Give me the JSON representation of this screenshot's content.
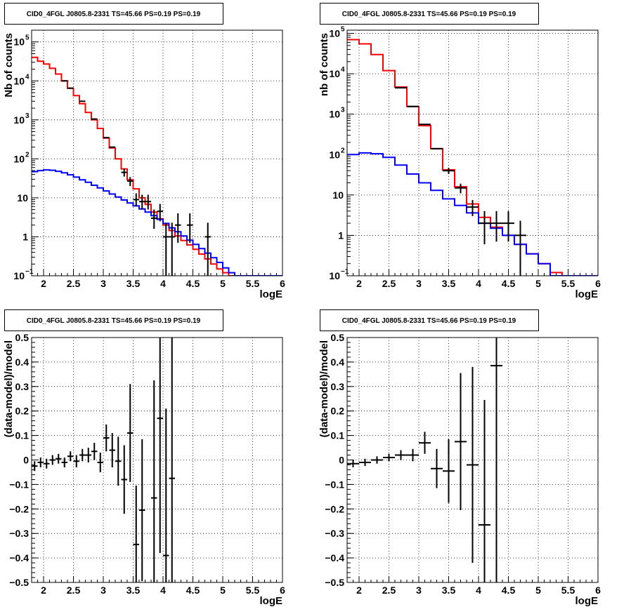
{
  "chart_data": [
    {
      "type": "line",
      "title": "CID0_4FGL J0805.8-2331 TS=45.66 PS=0.19 PS=0.19",
      "xlabel": "logE",
      "ylabel": "Nb of counts",
      "xlim": [
        1.8,
        6
      ],
      "ylim": [
        0.1,
        200000
      ],
      "yscale": "log",
      "grid": true,
      "x_ticks": [
        "2",
        "2.5",
        "3",
        "3.5",
        "4",
        "4.5",
        "5",
        "5.5",
        "6"
      ],
      "y_ticks": [
        {
          "v": 0.1,
          "base": "10",
          "exp": "−1"
        },
        {
          "v": 1,
          "base": "1",
          "exp": ""
        },
        {
          "v": 10,
          "base": "10",
          "exp": ""
        },
        {
          "v": 100,
          "base": "10",
          "exp": "2"
        },
        {
          "v": 1000,
          "base": "10",
          "exp": "3"
        },
        {
          "v": 10000,
          "base": "10",
          "exp": "4"
        },
        {
          "v": 100000,
          "base": "10",
          "exp": "5"
        }
      ],
      "series": [
        {
          "kind": "step",
          "color": "#ff0000",
          "bin_width": 0.1,
          "x": [
            1.8,
            1.9,
            2.0,
            2.1,
            2.2,
            2.3,
            2.4,
            2.5,
            2.6,
            2.7,
            2.8,
            2.9,
            3.0,
            3.1,
            3.2,
            3.3,
            3.4,
            3.5,
            3.6,
            3.7,
            3.8,
            3.9,
            4.0,
            4.1,
            4.2,
            4.3,
            4.4,
            4.5,
            4.6,
            4.7,
            4.8,
            4.9,
            5.0,
            5.1,
            5.2,
            5.3,
            5.4,
            5.5,
            5.6,
            5.7,
            5.8,
            5.9
          ],
          "y": [
            40000,
            32000,
            27000,
            21000,
            15000,
            10000,
            6500,
            4200,
            2600,
            1550,
            1000,
            600,
            340,
            190,
            100,
            55,
            29,
            17,
            10,
            6.8,
            4.3,
            2.9,
            2.0,
            1.45,
            1.05,
            0.8,
            0.62,
            0.48,
            0.36,
            0.27,
            0.2,
            0.15,
            0.12,
            0.1,
            0.1,
            0.1,
            0.1,
            0.1,
            0.1,
            0.1,
            0.1,
            0.1
          ]
        },
        {
          "kind": "step",
          "color": "#0000ff",
          "bin_width": 0.1,
          "x": [
            1.8,
            1.9,
            2.0,
            2.1,
            2.2,
            2.3,
            2.4,
            2.5,
            2.6,
            2.7,
            2.8,
            2.9,
            3.0,
            3.1,
            3.2,
            3.3,
            3.4,
            3.5,
            3.6,
            3.7,
            3.8,
            3.9,
            4.0,
            4.1,
            4.2,
            4.3,
            4.4,
            4.5,
            4.6,
            4.7,
            4.8,
            4.9,
            5.0,
            5.1,
            5.2,
            5.3,
            5.4,
            5.5,
            5.6,
            5.7,
            5.8,
            5.9
          ],
          "y": [
            47,
            50,
            52,
            51,
            48,
            44,
            39,
            34,
            29,
            25,
            21,
            18,
            15,
            12.5,
            10.5,
            8.8,
            7.4,
            6.2,
            5.2,
            4.3,
            3.5,
            2.8,
            2.2,
            1.7,
            1.35,
            1.05,
            0.82,
            0.64,
            0.5,
            0.38,
            0.29,
            0.22,
            0.16,
            0.12,
            0.1,
            0.1,
            0.1,
            0.1,
            0.1,
            0.1,
            0.1,
            0.1
          ]
        },
        {
          "kind": "errorbars",
          "color": "#000000",
          "points": [
            {
              "x": 2.35,
              "y": 10000,
              "xerr": 0.05
            },
            {
              "x": 2.45,
              "y": 6500,
              "xerr": 0.05
            },
            {
              "x": 2.65,
              "y": 3000,
              "xerr": 0.05
            },
            {
              "x": 2.85,
              "y": 1050,
              "xerr": 0.05
            },
            {
              "x": 3.05,
              "y": 350,
              "xerr": 0.05
            },
            {
              "x": 3.15,
              "y": 200,
              "xerr": 0.05
            },
            {
              "x": 3.35,
              "y": 45,
              "ylo": 35,
              "yhi": 56,
              "xerr": 0.05
            },
            {
              "x": 3.45,
              "y": 27,
              "ylo": 20,
              "yhi": 34,
              "xerr": 0.05
            },
            {
              "x": 3.55,
              "y": 9,
              "ylo": 6,
              "yhi": 13,
              "xerr": 0.05
            },
            {
              "x": 3.65,
              "y": 8,
              "ylo": 5,
              "yhi": 12,
              "xerr": 0.05
            },
            {
              "x": 3.75,
              "y": 8,
              "ylo": 5,
              "yhi": 12,
              "xerr": 0.05
            },
            {
              "x": 3.85,
              "y": 3,
              "ylo": 1.6,
              "yhi": 5,
              "xerr": 0.05
            },
            {
              "x": 3.95,
              "y": 4.5,
              "ylo": 2.5,
              "yhi": 7,
              "xerr": 0.05
            },
            {
              "x": 4.05,
              "y": 1,
              "ylo": 0.1,
              "yhi": 2.3,
              "xerr": 0.05
            },
            {
              "x": 4.15,
              "y": 1,
              "ylo": 0.1,
              "yhi": 2.3,
              "xerr": 0.05
            },
            {
              "x": 4.25,
              "y": 2,
              "ylo": 0.7,
              "yhi": 4,
              "xerr": 0.05
            },
            {
              "x": 4.45,
              "y": 2,
              "ylo": 0.7,
              "yhi": 4,
              "xerr": 0.05
            },
            {
              "x": 4.75,
              "y": 1,
              "ylo": 0.1,
              "yhi": 2.3,
              "xerr": 0.05
            }
          ]
        }
      ]
    },
    {
      "type": "line",
      "title": "CID0_4FGL J0805.8-2331 TS=45.66 PS=0.19 PS=0.19",
      "xlabel": "logE",
      "ylabel": "nb of counts",
      "xlim": [
        1.8,
        6
      ],
      "ylim": [
        0.1,
        120000
      ],
      "yscale": "log",
      "grid": true,
      "x_ticks": [
        "2",
        "2.5",
        "3",
        "3.5",
        "4",
        "4.5",
        "5",
        "5.5",
        "6"
      ],
      "y_ticks": [
        {
          "v": 0.1,
          "base": "10",
          "exp": "−1"
        },
        {
          "v": 1,
          "base": "1",
          "exp": ""
        },
        {
          "v": 10,
          "base": "10",
          "exp": ""
        },
        {
          "v": 100,
          "base": "10",
          "exp": "2"
        },
        {
          "v": 1000,
          "base": "10",
          "exp": "3"
        },
        {
          "v": 10000,
          "base": "10",
          "exp": "4"
        },
        {
          "v": 100000,
          "base": "10",
          "exp": "5"
        }
      ],
      "series": [
        {
          "kind": "step",
          "color": "#ff0000",
          "bin_width": 0.2,
          "x": [
            1.8,
            2.0,
            2.2,
            2.4,
            2.6,
            2.8,
            3.0,
            3.2,
            3.4,
            3.6,
            3.8,
            4.0,
            4.2,
            4.4,
            4.6,
            4.8,
            5.0,
            5.2,
            5.4,
            5.6,
            5.8
          ],
          "y": [
            70000,
            55000,
            30000,
            12000,
            4700,
            1550,
            520,
            140,
            42,
            16,
            6,
            2.8,
            1.6,
            1.0,
            0.6,
            0.35,
            0.2,
            0.12,
            0.1,
            0.1,
            0.1
          ]
        },
        {
          "kind": "step",
          "color": "#0000ff",
          "bin_width": 0.2,
          "x": [
            1.8,
            2.0,
            2.2,
            2.4,
            2.6,
            2.8,
            3.0,
            3.2,
            3.4,
            3.6,
            3.8,
            4.0,
            4.2,
            4.4,
            4.6,
            4.8,
            5.0,
            5.2,
            5.4,
            5.6,
            5.8
          ],
          "y": [
            100,
            110,
            105,
            85,
            55,
            33,
            20,
            13,
            8,
            5.5,
            3.6,
            2.0,
            1.5,
            1.0,
            0.6,
            0.35,
            0.2,
            0.1,
            0.1,
            0.1,
            0.1
          ]
        },
        {
          "kind": "errorbars",
          "color": "#000000",
          "points": [
            {
              "x": 2.7,
              "y": 4500,
              "xerr": 0.1
            },
            {
              "x": 2.9,
              "y": 1550,
              "xerr": 0.1
            },
            {
              "x": 3.1,
              "y": 560,
              "xerr": 0.1
            },
            {
              "x": 3.3,
              "y": 140,
              "xerr": 0.1
            },
            {
              "x": 3.5,
              "y": 40,
              "ylo": 33,
              "yhi": 47,
              "xerr": 0.1
            },
            {
              "x": 3.7,
              "y": 15,
              "ylo": 11,
              "yhi": 19,
              "xerr": 0.1
            },
            {
              "x": 3.9,
              "y": 5,
              "ylo": 3,
              "yhi": 7.5,
              "xerr": 0.1
            },
            {
              "x": 4.1,
              "y": 2,
              "ylo": 0.6,
              "yhi": 4,
              "xerr": 0.1
            },
            {
              "x": 4.3,
              "y": 2,
              "ylo": 0.7,
              "yhi": 4,
              "xerr": 0.1
            },
            {
              "x": 4.5,
              "y": 2,
              "ylo": 0.7,
              "yhi": 4,
              "xerr": 0.1
            },
            {
              "x": 4.7,
              "y": 1,
              "ylo": 0.1,
              "yhi": 2.3,
              "xerr": 0.1
            }
          ]
        }
      ]
    },
    {
      "type": "scatter",
      "title": "CID0_4FGL J0805.8-2331 TS=45.66 PS=0.19 PS=0.19",
      "xlabel": "logE",
      "ylabel": "(data-model)/model",
      "xlim": [
        1.8,
        6
      ],
      "ylim": [
        -0.5,
        0.5
      ],
      "yscale": "linear",
      "grid": true,
      "x_ticks": [
        "2",
        "2.5",
        "3",
        "3.5",
        "4",
        "4.5",
        "5",
        "5.5",
        "6"
      ],
      "y_ticks": [
        "−0.5",
        "−0.4",
        "−0.3",
        "−0.2",
        "−0.1",
        "0",
        "0.1",
        "0.2",
        "0.3",
        "0.4",
        "0.5"
      ],
      "series": [
        {
          "kind": "errorbars",
          "color": "#000000",
          "points": [
            {
              "x": 1.85,
              "y": -0.025,
              "err": 0.02,
              "xerr": 0.05
            },
            {
              "x": 1.95,
              "y": -0.01,
              "err": 0.02,
              "xerr": 0.05
            },
            {
              "x": 2.05,
              "y": -0.015,
              "err": 0.02,
              "xerr": 0.05
            },
            {
              "x": 2.15,
              "y": 0.0,
              "err": 0.02,
              "xerr": 0.05
            },
            {
              "x": 2.25,
              "y": 0.005,
              "err": 0.02,
              "xerr": 0.05
            },
            {
              "x": 2.35,
              "y": -0.01,
              "err": 0.02,
              "xerr": 0.05
            },
            {
              "x": 2.45,
              "y": 0.015,
              "err": 0.02,
              "xerr": 0.05
            },
            {
              "x": 2.55,
              "y": -0.005,
              "err": 0.025,
              "xerr": 0.05
            },
            {
              "x": 2.65,
              "y": 0.02,
              "err": 0.025,
              "xerr": 0.05
            },
            {
              "x": 2.75,
              "y": 0.02,
              "err": 0.03,
              "xerr": 0.05
            },
            {
              "x": 2.85,
              "y": 0.035,
              "err": 0.035,
              "xerr": 0.05
            },
            {
              "x": 2.95,
              "y": -0.01,
              "err": 0.04,
              "xerr": 0.05
            },
            {
              "x": 3.05,
              "y": 0.09,
              "err": 0.055,
              "xerr": 0.05
            },
            {
              "x": 3.15,
              "y": 0.04,
              "err": 0.07,
              "xerr": 0.05
            },
            {
              "x": 3.25,
              "y": -0.005,
              "err": 0.1,
              "xerr": 0.05
            },
            {
              "x": 3.35,
              "y": -0.08,
              "err": 0.14,
              "xerr": 0.05
            },
            {
              "x": 3.45,
              "y": 0.11,
              "err": 0.2,
              "xerr": 0.05
            },
            {
              "x": 3.55,
              "y": -0.345,
              "err": 0.24,
              "xerr": 0.05
            },
            {
              "x": 3.65,
              "y": -0.205,
              "err": 0.29,
              "xerr": 0.05
            },
            {
              "x": 3.85,
              "y": -0.155,
              "err": 0.48,
              "xerr": 0.05
            },
            {
              "x": 3.95,
              "y": 0.17,
              "err": 0.55,
              "xerr": 0.05
            },
            {
              "x": 4.05,
              "y": -0.39,
              "err": 0.6,
              "xerr": 0.05
            },
            {
              "x": 4.15,
              "y": -0.075,
              "err": 0.7,
              "xerr": 0.05
            }
          ]
        }
      ]
    },
    {
      "type": "scatter",
      "title": "CID0_4FGL J0805.8-2331 TS=45.66 PS=0.19 PS=0.19",
      "xlabel": "logE",
      "ylabel": "(data-model)/model",
      "xlim": [
        1.8,
        6
      ],
      "ylim": [
        -0.5,
        0.5
      ],
      "yscale": "linear",
      "grid": true,
      "x_ticks": [
        "2",
        "2.5",
        "3",
        "3.5",
        "4",
        "4.5",
        "5",
        "5.5",
        "6"
      ],
      "y_ticks": [
        "−0.5",
        "−0.4",
        "−0.3",
        "−0.2",
        "−0.1",
        "0",
        "0.1",
        "0.2",
        "0.3",
        "0.4",
        "0.5"
      ],
      "series": [
        {
          "kind": "errorbars",
          "color": "#000000",
          "points": [
            {
              "x": 1.9,
              "y": -0.015,
              "err": 0.015,
              "xerr": 0.1
            },
            {
              "x": 2.1,
              "y": -0.01,
              "err": 0.015,
              "xerr": 0.1
            },
            {
              "x": 2.3,
              "y": 0.0,
              "err": 0.015,
              "xerr": 0.1
            },
            {
              "x": 2.5,
              "y": 0.01,
              "err": 0.015,
              "xerr": 0.1
            },
            {
              "x": 2.7,
              "y": 0.02,
              "err": 0.02,
              "xerr": 0.1
            },
            {
              "x": 2.9,
              "y": 0.02,
              "err": 0.025,
              "xerr": 0.1
            },
            {
              "x": 3.1,
              "y": 0.07,
              "err": 0.045,
              "xerr": 0.1
            },
            {
              "x": 3.3,
              "y": -0.035,
              "err": 0.08,
              "xerr": 0.1
            },
            {
              "x": 3.5,
              "y": -0.045,
              "err": 0.13,
              "xerr": 0.1
            },
            {
              "x": 3.7,
              "y": 0.075,
              "err": 0.28,
              "xerr": 0.1
            },
            {
              "x": 3.9,
              "y": -0.02,
              "err": 0.4,
              "xerr": 0.1
            },
            {
              "x": 4.1,
              "y": -0.265,
              "err": 0.51,
              "xerr": 0.1
            },
            {
              "x": 4.3,
              "y": 0.385,
              "err": 0.9,
              "xerr": 0.1
            }
          ]
        }
      ]
    }
  ]
}
